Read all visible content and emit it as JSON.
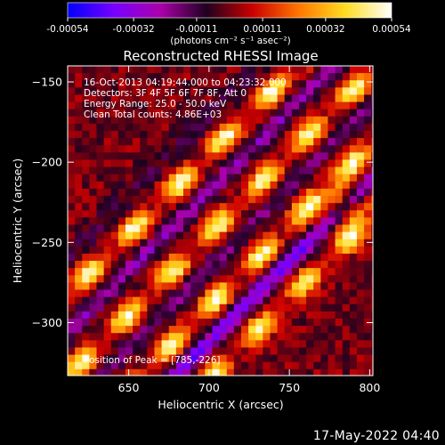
{
  "chart_data": {
    "type": "heatmap",
    "title": "Reconstructed RHESSI Image",
    "xlabel": "Heliocentric X (arcsec)",
    "ylabel": "Heliocentric Y (arcsec)",
    "xlim": [
      612,
      802
    ],
    "ylim": [
      -333,
      -140
    ],
    "xticks": [
      650,
      700,
      750,
      800
    ],
    "yticks": [
      -150,
      -200,
      -250,
      -300
    ],
    "colorbar": {
      "min": -0.00054,
      "max": 0.00054,
      "ticks": [
        "-0.00054",
        "-0.00032",
        "-0.00011",
        "0.00011",
        "0.00032",
        "0.00054"
      ],
      "unit_label": "(photons cm⁻² s⁻¹ asec⁻²)",
      "colormap": [
        "#0000ff",
        "#7700ff",
        "#aa00aa",
        "#200020",
        "#cc0000",
        "#ff7700",
        "#ffdd22",
        "#ffffff"
      ]
    },
    "annotations": {
      "time": "16-Oct-2013 04:19:44.000 to 04:23:32.000",
      "detectors": "Detectors: 3F 4F 5F 6F 7F 8F, Att 0",
      "energy": "Energy Range: 25.0 - 50.0 keV",
      "clean": "Clean    Total counts: 4.86E+03",
      "peak": "Position of Peak = [785,-226]"
    },
    "peak": {
      "x": 785,
      "y": -226
    },
    "ridges": [
      {
        "intercept": -195,
        "amp": 1.0
      },
      {
        "intercept": -245,
        "amp": 0.95
      },
      {
        "intercept": -290,
        "amp": 0.95
      },
      {
        "intercept": -335,
        "amp": 0.85
      }
    ],
    "troughs": [
      {
        "intercept": -170,
        "amp": 0.75
      },
      {
        "intercept": -220,
        "amp": 0.85
      },
      {
        "intercept": -268,
        "amp": 0.8
      },
      {
        "intercept": -312,
        "amp": 0.7
      }
    ]
  },
  "footer": {
    "timestamp": "17-May-2022 04:40"
  }
}
